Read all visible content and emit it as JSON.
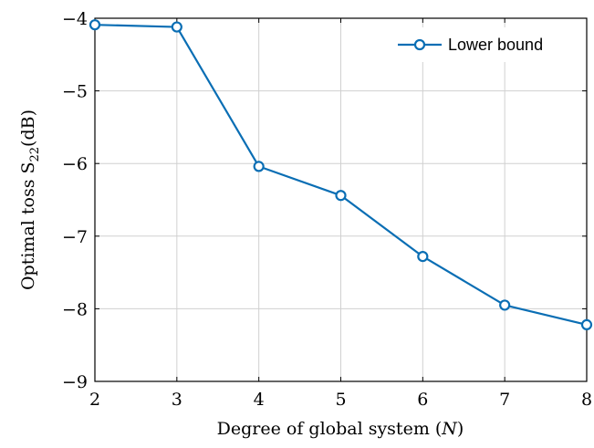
{
  "chart_data": {
    "type": "line",
    "xlabel": "Degree of global system (N)",
    "ylabel": "Optimal toss S22(dB)",
    "xlim": [
      2,
      8
    ],
    "ylim": [
      -9,
      -4
    ],
    "x_ticks": [
      2,
      3,
      4,
      5,
      6,
      7,
      8
    ],
    "y_ticks": [
      -9,
      -8,
      -7,
      -6,
      -5,
      -4
    ],
    "x_tick_labels": [
      "2",
      "3",
      "4",
      "5",
      "6",
      "7",
      "8"
    ],
    "y_tick_labels": [
      "−9",
      "−8",
      "−7",
      "−6",
      "−5",
      "−4"
    ],
    "grid": true,
    "legend_position": "top-right",
    "series": [
      {
        "name": "Lower bound",
        "color": "#0a6eb4",
        "marker": "circle",
        "x": [
          2,
          3,
          4,
          5,
          6,
          7,
          8
        ],
        "values": [
          -4.09,
          -4.12,
          -6.04,
          -6.44,
          -7.28,
          -7.95,
          -8.22
        ]
      }
    ]
  }
}
